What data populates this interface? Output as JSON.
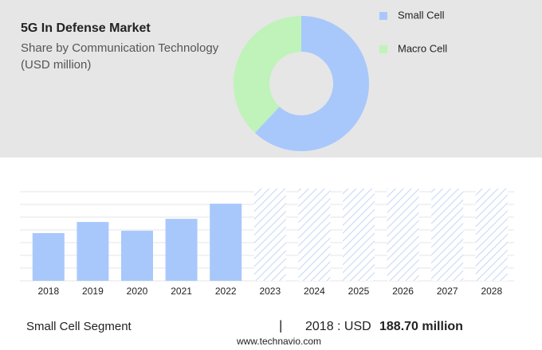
{
  "chart_data": [
    {
      "type": "donut",
      "title": "5G In Defense Market",
      "subtitle": [
        "Share by Communication Technology",
        "(USD million)"
      ],
      "categories": [
        "Small Cell",
        "Macro Cell"
      ],
      "values": [
        62,
        38
      ],
      "colors": [
        "#a8c8fc",
        "#bff3b9"
      ]
    },
    {
      "type": "bar",
      "categories": [
        "2018",
        "2019",
        "2020",
        "2021",
        "2022",
        "2023",
        "2024",
        "2025",
        "2026",
        "2027",
        "2028"
      ],
      "values": [
        188.7,
        232.7,
        198,
        245,
        305,
        null,
        null,
        null,
        null,
        null,
        null
      ],
      "color": "#a8c8fc",
      "ylim": [
        0,
        365
      ]
    }
  ],
  "footer": {
    "segment": "Small Cell Segment",
    "separator": "|",
    "year": "2018 : USD",
    "highlight": "188.70 million",
    "source": "www.technavio.com"
  }
}
